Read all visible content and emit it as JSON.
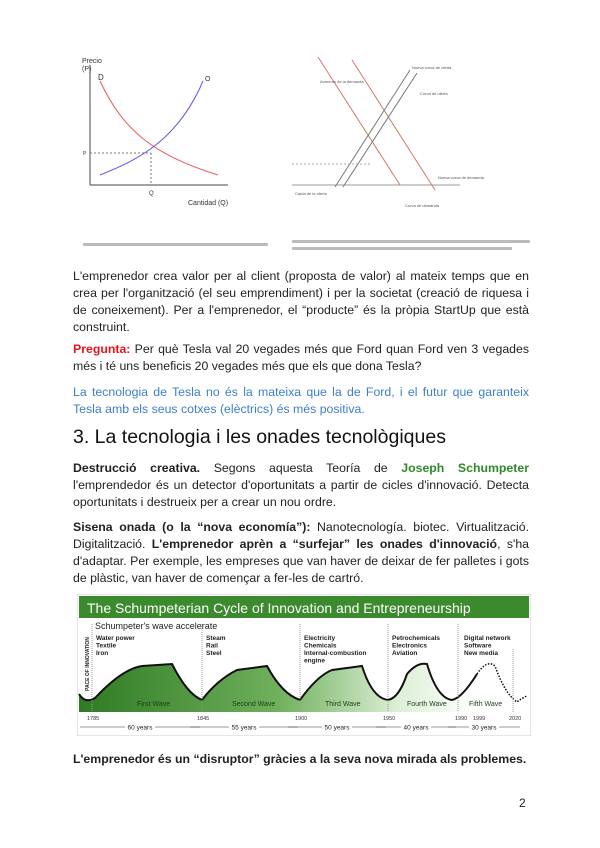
{
  "figure1": {
    "y_axis_label_1": "Precio",
    "y_axis_label_2": "(P)",
    "x_axis_label": "Cantidad (Q)",
    "demand_label": "D",
    "supply_label": "O",
    "price_tick": "P",
    "quantity_tick": "Q",
    "demand_color": "#e85a5a",
    "supply_color": "#5a5ae8"
  },
  "figure2": {
    "labels": {
      "demand_increase": "Aumento de la demanda",
      "new_supply": "Nueva curva de oferta",
      "initial_supply": "Curva de oferta",
      "new_demand": "Nueva curva de demanda",
      "supply_decrease": "Caída de la oferta",
      "initial_demand": "Curva de demanda"
    }
  },
  "paragraphs": {
    "p1": "L'emprenedor crea valor per al client (proposta de valor) al mateix temps que en crea per l'organització (el seu emprendiment) i per la societat (creació de riquesa i de coneixement). Per a l'emprenedor, el “producte” és la pròpia StartUp que està construint.",
    "question_label": "Pregunta:",
    "question": " Per què Tesla val 20 vegades més que Ford quan Ford ven 3 vegades més i té uns beneficis 20 vegades més que els que dona Tesla?",
    "answer": "La tecnologia de Tesla no és la mateixa que la de Ford, i el futur que garanteix Tesla amb els seus cotxes (elèctrics) és més positiva.",
    "heading": "3. La tecnologia i les onades tecnològiques",
    "p2_bold": "Destrucció creativa.",
    "p2_a": " Segons aquesta Teoría de ",
    "p2_link": "Joseph Schumpeter",
    "p2_b": " l'emprendedor és un detector d'oportunitats a partir de cicles d'innovació. Detecta oportunitats i destrueix per a crear un nou ordre.",
    "p3_bold1": "Sisena onada (o la “nova economía”):",
    "p3_a": " Nanotecnología. biotec. Virtualització. Digitalització. ",
    "p3_bold2": "L'emprenedor aprèn a “surfejar” les onades d'innovació",
    "p3_b": ", s'ha d'adaptar. Per exemple, les empreses que van haver de deixar de fer palletes i gots de plàstic, van haver de començar a fer-les de cartró.",
    "closing": "L'emprenedor és un “disruptor” gràcies a la seva nova mirada als problemes."
  },
  "wave_figure": {
    "title": "The Schumpeterian Cycle of Innovation and Entrepreneurship",
    "subtitle": "Schumpeter's wave accelerate",
    "y_label": "PACE OF INNOVATION",
    "header_color": "#3b8a2e",
    "waves": [
      {
        "name": "First Wave",
        "items": [
          "Water power",
          "Textile",
          "Iron"
        ],
        "start": "1785",
        "duration": "60 years"
      },
      {
        "name": "Second Wave",
        "items": [
          "Steam",
          "Rail",
          "Steel"
        ],
        "start": "1845",
        "duration": "55 years"
      },
      {
        "name": "Third Wave",
        "items": [
          "Electricity",
          "Chemicals",
          "Internal-combustion",
          "engine"
        ],
        "start": "1900",
        "duration": "50 years"
      },
      {
        "name": "Fourth Wave",
        "items": [
          "Petrochemicals",
          "Electronics",
          "Aviation"
        ],
        "start": "1950",
        "duration": "40 years"
      },
      {
        "name": "Fifth Wave",
        "items": [
          "Digital network",
          "Software",
          "New media"
        ],
        "start": "1990",
        "duration": "30 years"
      }
    ],
    "extra_years": [
      "1999",
      "2020"
    ]
  },
  "page_number": "2"
}
